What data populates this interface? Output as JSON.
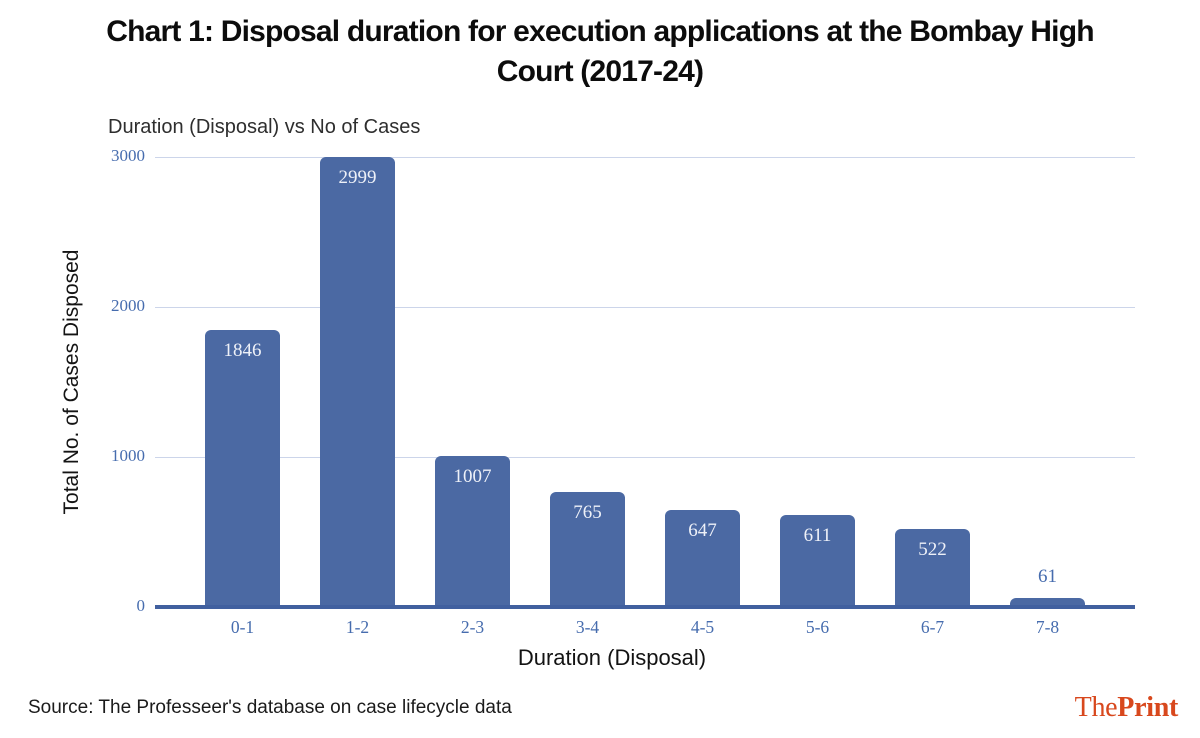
{
  "header": {
    "title": "Chart 1: Disposal duration for execution applications at the Bombay High Court (2017-24)"
  },
  "chart_data": {
    "type": "bar",
    "title": "Duration (Disposal) vs No of Cases",
    "categories": [
      "0-1",
      "1-2",
      "2-3",
      "3-4",
      "4-5",
      "5-6",
      "6-7",
      "7-8"
    ],
    "values": [
      1846,
      2999,
      1007,
      765,
      647,
      611,
      522,
      61
    ],
    "xlabel": "Duration (Disposal)",
    "ylabel": "Total No. of Cases Disposed",
    "ylim": [
      0,
      3000
    ],
    "yticks": [
      0,
      1000,
      2000,
      3000
    ],
    "grid": "horizontal",
    "legend": "none",
    "colors": {
      "bar_fill": "#4b69a3",
      "gridline": "#ccd5ea",
      "axis_line": "#41609f",
      "tick_label": "#466cae",
      "value_label_inside": "#eef1f8",
      "value_label_outside": "#466cae"
    }
  },
  "footer": {
    "source": "Source: The Professeer's database on case lifecycle data",
    "logo": {
      "the": "The",
      "print": "Print",
      "color": "#d8481d"
    }
  }
}
